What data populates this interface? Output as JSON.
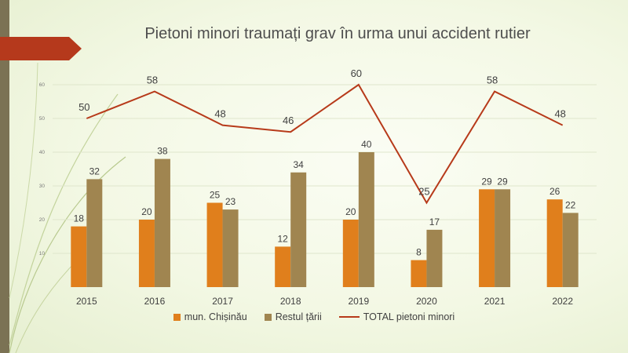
{
  "chart_data": {
    "type": "bar",
    "title": "Pietoni minori traumați grav în urma unui accident rutier",
    "categories": [
      "2015",
      "2016",
      "2017",
      "2018",
      "2019",
      "2020",
      "2021",
      "2022"
    ],
    "series": [
      {
        "name": "mun. Chișinău",
        "type": "bar",
        "color": "#e07f1c",
        "values": [
          18,
          20,
          25,
          12,
          20,
          8,
          29,
          26
        ]
      },
      {
        "name": "Restul țării",
        "type": "bar",
        "color": "#a08550",
        "values": [
          32,
          38,
          23,
          34,
          40,
          17,
          29,
          22
        ]
      },
      {
        "name": "TOTAL pietoni minori",
        "type": "line",
        "color": "#b73a1a",
        "values": [
          50,
          58,
          48,
          46,
          60,
          25,
          58,
          48
        ]
      }
    ],
    "yticks": [
      10,
      20,
      30,
      40,
      50,
      60
    ],
    "ylim": [
      0,
      70
    ],
    "legend_position": "bottom",
    "data_labels": true,
    "grid": true
  }
}
